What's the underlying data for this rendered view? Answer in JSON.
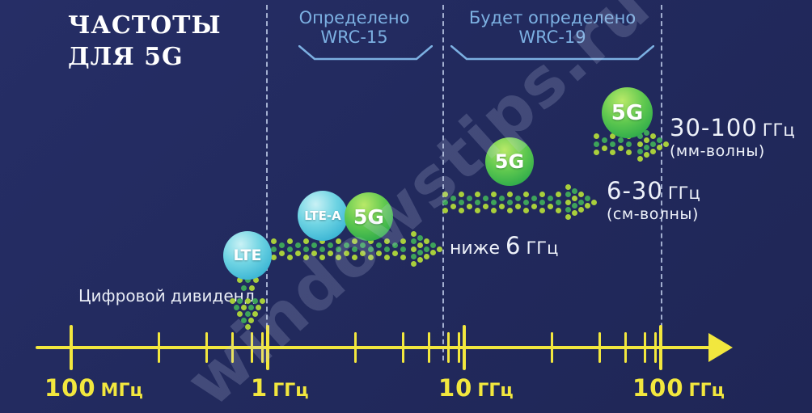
{
  "title": {
    "line1": "ЧАСТОТЫ",
    "line2": "ДЛЯ 5G"
  },
  "wrc_regions": [
    {
      "line1": "Определено",
      "line2": "WRC-15"
    },
    {
      "line1": "Будет определено",
      "line2": "WRC-19"
    }
  ],
  "bubbles": {
    "lte": "LTE",
    "lte_a": "LTE-A",
    "g5_low": "5G",
    "g5_mid": "5G",
    "g5_high": "5G"
  },
  "freq_labels": {
    "mm": {
      "prefix": "",
      "value": "30-100",
      "unit": "ГГц",
      "note": "(мм-волны)"
    },
    "cm": {
      "prefix": "",
      "value": "6-30",
      "unit": "ГГц",
      "note": "(см-волны)"
    },
    "sub6": {
      "prefix": "ниже",
      "value": "6",
      "unit": "ГГц",
      "note": ""
    }
  },
  "digital_dividend": "Цифровой дивиденд",
  "axis": {
    "scale": "logarithmic",
    "major_ticks_ghz": [
      0.1,
      1,
      10,
      100
    ],
    "minor_multipliers": [
      2.8,
      4.9,
      6.6,
      8.3,
      9.4
    ],
    "labels": [
      {
        "value": "100",
        "unit": "МГц"
      },
      {
        "value": "1",
        "unit": "ГГц"
      },
      {
        "value": "10",
        "unit": "ГГц"
      },
      {
        "value": "100",
        "unit": "ГГц"
      }
    ]
  },
  "watermark": "windowstips.ru",
  "colors": {
    "background": "#232b5e",
    "axis_yellow": "#f2e73e",
    "accent_blue": "#7cb0e2",
    "dot_green_light": "#a9cf3c",
    "dot_green_dark": "#3ea45a",
    "bubble_cyan": "#35b4d6",
    "bubble_green": "#2fae4f"
  }
}
